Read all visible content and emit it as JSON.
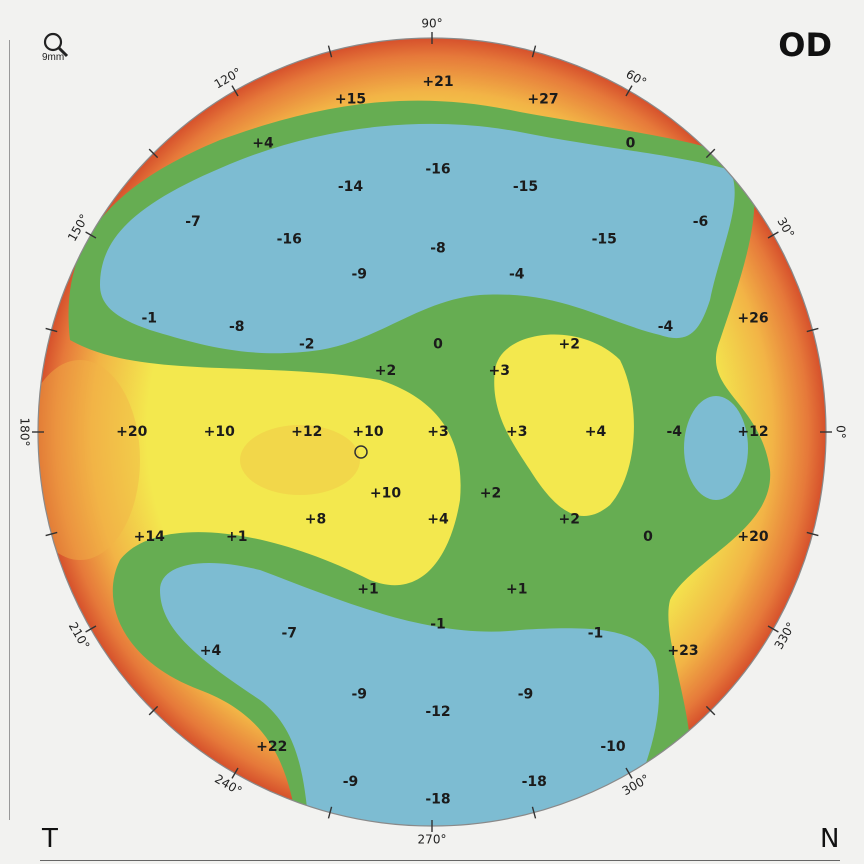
{
  "eye": "OD",
  "corner_left": "T",
  "corner_right": "N",
  "zoom_label": "9mm",
  "angle_labels": [
    {
      "deg": 90,
      "text": "90°"
    },
    {
      "deg": 60,
      "text": "60°"
    },
    {
      "deg": 120,
      "text": "120°"
    },
    {
      "deg": 30,
      "text": "30°"
    },
    {
      "deg": 150,
      "text": "150°"
    },
    {
      "deg": 0,
      "text": "0°"
    },
    {
      "deg": 180,
      "text": "180°"
    },
    {
      "deg": 210,
      "text": "210°"
    },
    {
      "deg": 330,
      "text": "330°"
    },
    {
      "deg": 240,
      "text": "240°"
    },
    {
      "deg": 300,
      "text": "300°"
    },
    {
      "deg": 270,
      "text": "270°"
    }
  ],
  "colors": {
    "blue": "#7dbcd2",
    "green": "#66ad52",
    "yellow": "#f3e84e",
    "orange": "#f0a640",
    "red": "#d9522c"
  },
  "grid_values": [
    {
      "col": 4,
      "row": 0,
      "text": "+21"
    },
    {
      "col": 3,
      "row": 0.2,
      "text": "+15"
    },
    {
      "col": 5.2,
      "row": 0.2,
      "text": "+27"
    },
    {
      "col": 2,
      "row": 0.7,
      "text": "+4"
    },
    {
      "col": 6.2,
      "row": 0.7,
      "text": "0"
    },
    {
      "col": 4,
      "row": 1,
      "text": "-16"
    },
    {
      "col": 3,
      "row": 1.2,
      "text": "-14"
    },
    {
      "col": 5,
      "row": 1.2,
      "text": "-15"
    },
    {
      "col": 1.2,
      "row": 1.6,
      "text": "-7"
    },
    {
      "col": 7,
      "row": 1.6,
      "text": "-6"
    },
    {
      "col": 2.3,
      "row": 1.8,
      "text": "-16"
    },
    {
      "col": 5.9,
      "row": 1.8,
      "text": "-15"
    },
    {
      "col": 4,
      "row": 1.9,
      "text": "-8"
    },
    {
      "col": 3.1,
      "row": 2.2,
      "text": "-9"
    },
    {
      "col": 4.9,
      "row": 2.2,
      "text": "-4"
    },
    {
      "col": 0.7,
      "row": 2.7,
      "text": "-1"
    },
    {
      "col": 1.7,
      "row": 2.8,
      "text": "-8"
    },
    {
      "col": 7.6,
      "row": 2.7,
      "text": "+26"
    },
    {
      "col": 6.6,
      "row": 2.8,
      "text": "-4"
    },
    {
      "col": 2.5,
      "row": 3,
      "text": "-2"
    },
    {
      "col": 4,
      "row": 3,
      "text": "0"
    },
    {
      "col": 5.5,
      "row": 3,
      "text": "+2"
    },
    {
      "col": 3.4,
      "row": 3.3,
      "text": "+2"
    },
    {
      "col": 4.7,
      "row": 3.3,
      "text": "+3"
    },
    {
      "col": 0.5,
      "row": 4,
      "text": "+20"
    },
    {
      "col": 1.5,
      "row": 4,
      "text": "+10"
    },
    {
      "col": 2.5,
      "row": 4,
      "text": "+12"
    },
    {
      "col": 3.2,
      "row": 4,
      "text": "+10"
    },
    {
      "col": 4,
      "row": 4,
      "text": "+3"
    },
    {
      "col": 4.9,
      "row": 4,
      "text": "+3"
    },
    {
      "col": 5.8,
      "row": 4,
      "text": "+4"
    },
    {
      "col": 6.7,
      "row": 4,
      "text": "-4"
    },
    {
      "col": 7.6,
      "row": 4,
      "text": "+12"
    },
    {
      "col": 3.4,
      "row": 4.7,
      "text": "+10"
    },
    {
      "col": 4.6,
      "row": 4.7,
      "text": "+2"
    },
    {
      "col": 2.6,
      "row": 5,
      "text": "+8"
    },
    {
      "col": 4,
      "row": 5,
      "text": "+4"
    },
    {
      "col": 5.5,
      "row": 5,
      "text": "+2"
    },
    {
      "col": 0.7,
      "row": 5.2,
      "text": "+14"
    },
    {
      "col": 1.7,
      "row": 5.2,
      "text": "+1"
    },
    {
      "col": 6.4,
      "row": 5.2,
      "text": "0"
    },
    {
      "col": 7.6,
      "row": 5.2,
      "text": "+20"
    },
    {
      "col": 3.2,
      "row": 5.8,
      "text": "+1"
    },
    {
      "col": 4.9,
      "row": 5.8,
      "text": "+1"
    },
    {
      "col": 4,
      "row": 6.2,
      "text": "-1"
    },
    {
      "col": 2.3,
      "row": 6.3,
      "text": "-7"
    },
    {
      "col": 5.8,
      "row": 6.3,
      "text": "-1"
    },
    {
      "col": 1.4,
      "row": 6.5,
      "text": "+4"
    },
    {
      "col": 6.8,
      "row": 6.5,
      "text": "+23"
    },
    {
      "col": 3.1,
      "row": 7,
      "text": "-9"
    },
    {
      "col": 5,
      "row": 7,
      "text": "-9"
    },
    {
      "col": 4,
      "row": 7.2,
      "text": "-12"
    },
    {
      "col": 2.1,
      "row": 7.6,
      "text": "+22"
    },
    {
      "col": 6,
      "row": 7.6,
      "text": "-10"
    },
    {
      "col": 3,
      "row": 8,
      "text": "-9"
    },
    {
      "col": 5.1,
      "row": 8,
      "text": "-18"
    },
    {
      "col": 4,
      "row": 8.2,
      "text": "-18"
    }
  ]
}
